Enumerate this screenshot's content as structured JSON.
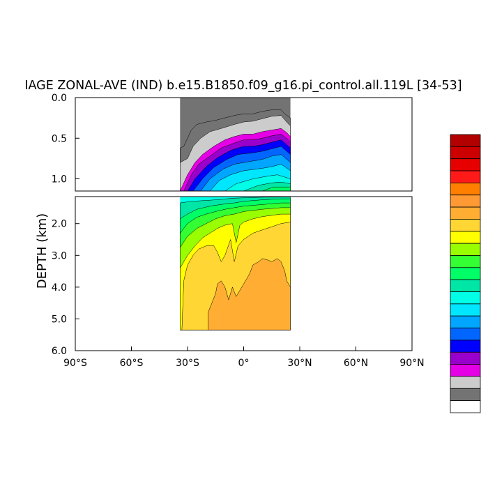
{
  "chart_data": {
    "type": "heatmap",
    "title": "IAGE ZONAL-AVE (IND) b.e15.B1850.f09_g16.pi_control.all.119L [34-53]",
    "ylabel": "DEPTH (km)",
    "xlabel": "",
    "x_ticks": [
      "90°S",
      "60°S",
      "30°S",
      "0°",
      "30°N",
      "60°N",
      "90°N"
    ],
    "x_tick_values": [
      -90,
      -60,
      -30,
      0,
      30,
      60,
      90
    ],
    "xlim": [
      -90,
      90
    ],
    "y_upper": {
      "ylim": [
        0.0,
        1.15
      ],
      "ticks": [
        "0.0",
        "0.5",
        "1.0"
      ],
      "tick_values": [
        0.0,
        0.5,
        1.0
      ]
    },
    "y_lower": {
      "ylim": [
        1.15,
        6.0
      ],
      "ticks": [
        "2.0",
        "3.0",
        "4.0",
        "5.0",
        "6.0"
      ],
      "tick_values": [
        2.0,
        3.0,
        4.0,
        5.0,
        6.0
      ]
    },
    "data_extent": {
      "lat_south": -34,
      "lat_north": 25,
      "bottom_depth_km": 5.35
    },
    "colorbar": {
      "colors": [
        "#ffffff",
        "#737373",
        "#cccccc",
        "#e600e6",
        "#9900cc",
        "#0000ff",
        "#0066ff",
        "#00a6ff",
        "#00e6ff",
        "#00ffe6",
        "#00e6a6",
        "#00ff66",
        "#33ff33",
        "#99ff00",
        "#ffff00",
        "#ffd633",
        "#ffad33",
        "#ff9933",
        "#ff8000",
        "#ff1a1a",
        "#e60000",
        "#cc0000",
        "#b30000"
      ],
      "labels": []
    },
    "fields": {
      "upper_panel": [
        {
          "level": 1,
          "color": "#737373",
          "boundary": [
            [
              -34,
              0.62
            ],
            [
              -32,
              0.6
            ],
            [
              -28,
              0.4
            ],
            [
              -25,
              0.33
            ],
            [
              -20,
              0.3
            ],
            [
              -15,
              0.28
            ],
            [
              -10,
              0.25
            ],
            [
              -5,
              0.22
            ],
            [
              0,
              0.2
            ],
            [
              5,
              0.2
            ],
            [
              10,
              0.17
            ],
            [
              15,
              0.15
            ],
            [
              20,
              0.15
            ],
            [
              22,
              0.2
            ],
            [
              25,
              0.25
            ]
          ]
        },
        {
          "level": 2,
          "color": "#cccccc",
          "boundary": [
            [
              -34,
              0.8
            ],
            [
              -30,
              0.75
            ],
            [
              -27,
              0.6
            ],
            [
              -23,
              0.5
            ],
            [
              -18,
              0.42
            ],
            [
              -12,
              0.38
            ],
            [
              -5,
              0.33
            ],
            [
              0,
              0.3
            ],
            [
              5,
              0.29
            ],
            [
              10,
              0.26
            ],
            [
              15,
              0.23
            ],
            [
              20,
              0.22
            ],
            [
              23,
              0.3
            ],
            [
              25,
              0.35
            ]
          ]
        },
        {
          "level": 3,
          "color": "#e600e6",
          "boundary": [
            [
              -34,
              1.15
            ],
            [
              -30,
              0.95
            ],
            [
              -26,
              0.8
            ],
            [
              -22,
              0.7
            ],
            [
              -16,
              0.6
            ],
            [
              -10,
              0.52
            ],
            [
              -5,
              0.48
            ],
            [
              0,
              0.45
            ],
            [
              5,
              0.45
            ],
            [
              10,
              0.42
            ],
            [
              15,
              0.4
            ],
            [
              20,
              0.38
            ],
            [
              23,
              0.43
            ],
            [
              25,
              0.48
            ]
          ]
        },
        {
          "level": 4,
          "color": "#9900cc",
          "boundary": [
            [
              -32,
              1.15
            ],
            [
              -28,
              0.95
            ],
            [
              -24,
              0.82
            ],
            [
              -18,
              0.72
            ],
            [
              -12,
              0.62
            ],
            [
              -5,
              0.56
            ],
            [
              0,
              0.52
            ],
            [
              5,
              0.52
            ],
            [
              10,
              0.5
            ],
            [
              15,
              0.47
            ],
            [
              20,
              0.45
            ],
            [
              23,
              0.5
            ],
            [
              25,
              0.55
            ]
          ]
        },
        {
          "level": 5,
          "color": "#0000ff",
          "boundary": [
            [
              -30,
              1.15
            ],
            [
              -26,
              1.0
            ],
            [
              -20,
              0.85
            ],
            [
              -14,
              0.74
            ],
            [
              -7,
              0.65
            ],
            [
              0,
              0.6
            ],
            [
              5,
              0.6
            ],
            [
              10,
              0.58
            ],
            [
              15,
              0.55
            ],
            [
              20,
              0.52
            ],
            [
              25,
              0.62
            ]
          ]
        },
        {
          "level": 6,
          "color": "#0066ff",
          "boundary": [
            [
              -27,
              1.15
            ],
            [
              -22,
              1.0
            ],
            [
              -16,
              0.86
            ],
            [
              -9,
              0.76
            ],
            [
              -3,
              0.7
            ],
            [
              5,
              0.68
            ],
            [
              10,
              0.66
            ],
            [
              15,
              0.63
            ],
            [
              20,
              0.6
            ],
            [
              25,
              0.7
            ]
          ]
        },
        {
          "level": 7,
          "color": "#00a6ff",
          "boundary": [
            [
              -23,
              1.15
            ],
            [
              -18,
              1.0
            ],
            [
              -11,
              0.88
            ],
            [
              -5,
              0.82
            ],
            [
              5,
              0.78
            ],
            [
              10,
              0.76
            ],
            [
              15,
              0.72
            ],
            [
              20,
              0.7
            ],
            [
              25,
              0.8
            ]
          ]
        },
        {
          "level": 8,
          "color": "#00e6ff",
          "boundary": [
            [
              -18,
              1.15
            ],
            [
              -13,
              1.02
            ],
            [
              -7,
              0.95
            ],
            [
              0,
              0.9
            ],
            [
              10,
              0.87
            ],
            [
              15,
              0.85
            ],
            [
              20,
              0.82
            ],
            [
              25,
              0.9
            ]
          ]
        },
        {
          "level": 9,
          "color": "#00ffe6",
          "boundary": [
            [
              -10,
              1.15
            ],
            [
              -4,
              1.06
            ],
            [
              5,
              1.0
            ],
            [
              12,
              0.97
            ],
            [
              18,
              0.95
            ],
            [
              25,
              1.0
            ]
          ]
        },
        {
          "level": 10,
          "color": "#00e6a6",
          "boundary": [
            [
              0,
              1.15
            ],
            [
              8,
              1.08
            ],
            [
              15,
              1.05
            ],
            [
              20,
              1.04
            ],
            [
              25,
              1.06
            ]
          ]
        },
        {
          "level": 11,
          "color": "#00ff66",
          "boundary": [
            [
              10,
              1.15
            ],
            [
              16,
              1.1
            ],
            [
              25,
              1.1
            ]
          ]
        }
      ],
      "lower_panel_base_color": "#00ffe6",
      "lower_panel": [
        {
          "level": 10,
          "color": "#00e6a6",
          "boundary": [
            [
              -34,
              1.35
            ],
            [
              -28,
              1.3
            ],
            [
              -20,
              1.27
            ],
            [
              -12,
              1.24
            ],
            [
              -6,
              1.2
            ],
            [
              0,
              1.19
            ],
            [
              10,
              1.17
            ],
            [
              25,
              1.16
            ]
          ]
        },
        {
          "level": 11,
          "color": "#00ff66",
          "boundary": [
            [
              -34,
              1.85
            ],
            [
              -30,
              1.7
            ],
            [
              -25,
              1.55
            ],
            [
              -18,
              1.45
            ],
            [
              -10,
              1.38
            ],
            [
              -5,
              1.35
            ],
            [
              0,
              1.3
            ],
            [
              10,
              1.25
            ],
            [
              20,
              1.22
            ],
            [
              25,
              1.22
            ]
          ]
        },
        {
          "level": 12,
          "color": "#33ff33",
          "boundary": [
            [
              -34,
              2.3
            ],
            [
              -30,
              2.0
            ],
            [
              -25,
              1.8
            ],
            [
              -20,
              1.7
            ],
            [
              -15,
              1.62
            ],
            [
              -10,
              1.55
            ],
            [
              -5,
              1.5
            ],
            [
              0,
              1.45
            ],
            [
              10,
              1.4
            ],
            [
              20,
              1.35
            ],
            [
              25,
              1.35
            ]
          ]
        },
        {
          "level": 13,
          "color": "#99ff00",
          "boundary": [
            [
              -34,
              2.75
            ],
            [
              -30,
              2.4
            ],
            [
              -25,
              2.15
            ],
            [
              -20,
              2.0
            ],
            [
              -15,
              1.85
            ],
            [
              -10,
              1.75
            ],
            [
              -5,
              1.7
            ],
            [
              0,
              1.62
            ],
            [
              10,
              1.55
            ],
            [
              20,
              1.5
            ],
            [
              25,
              1.5
            ]
          ]
        },
        {
          "level": 14,
          "color": "#ffff00",
          "boundary": [
            [
              -34,
              3.4
            ],
            [
              -30,
              3.0
            ],
            [
              -26,
              2.7
            ],
            [
              -22,
              2.45
            ],
            [
              -18,
              2.3
            ],
            [
              -14,
              2.15
            ],
            [
              -10,
              2.05
            ],
            [
              -6,
              2.0
            ],
            [
              -4,
              2.6
            ],
            [
              -2,
              2.05
            ],
            [
              0,
              1.95
            ],
            [
              5,
              1.85
            ],
            [
              10,
              1.78
            ],
            [
              20,
              1.7
            ],
            [
              25,
              1.7
            ]
          ]
        },
        {
          "level": 15,
          "color": "#ffd633",
          "boundary": [
            [
              -33,
              5.35
            ],
            [
              -32,
              3.8
            ],
            [
              -30,
              3.3
            ],
            [
              -27,
              3.0
            ],
            [
              -24,
              2.8
            ],
            [
              -20,
              2.7
            ],
            [
              -16,
              2.7
            ],
            [
              -14,
              2.9
            ],
            [
              -12,
              3.2
            ],
            [
              -10,
              3.0
            ],
            [
              -7,
              2.5
            ],
            [
              -5,
              3.2
            ],
            [
              -3,
              2.7
            ],
            [
              0,
              2.5
            ],
            [
              5,
              2.3
            ],
            [
              10,
              2.2
            ],
            [
              15,
              2.1
            ],
            [
              20,
              2.0
            ],
            [
              25,
              1.95
            ]
          ]
        },
        {
          "level": 16,
          "color": "#ffad33",
          "boundary": [
            [
              -19,
              5.35
            ],
            [
              -19,
              4.8
            ],
            [
              -17,
              4.5
            ],
            [
              -15,
              4.2
            ],
            [
              -14,
              3.9
            ],
            [
              -12,
              3.8
            ],
            [
              -10,
              4.0
            ],
            [
              -8,
              4.4
            ],
            [
              -6,
              4.0
            ],
            [
              -4,
              4.3
            ],
            [
              -2,
              4.1
            ],
            [
              0,
              3.9
            ],
            [
              3,
              3.6
            ],
            [
              5,
              3.3
            ],
            [
              8,
              3.2
            ],
            [
              10,
              3.1
            ],
            [
              13,
              3.15
            ],
            [
              15,
              3.2
            ],
            [
              18,
              3.1
            ],
            [
              20,
              3.2
            ],
            [
              22,
              3.5
            ],
            [
              23,
              3.8
            ],
            [
              25,
              4.0
            ]
          ]
        }
      ]
    }
  }
}
